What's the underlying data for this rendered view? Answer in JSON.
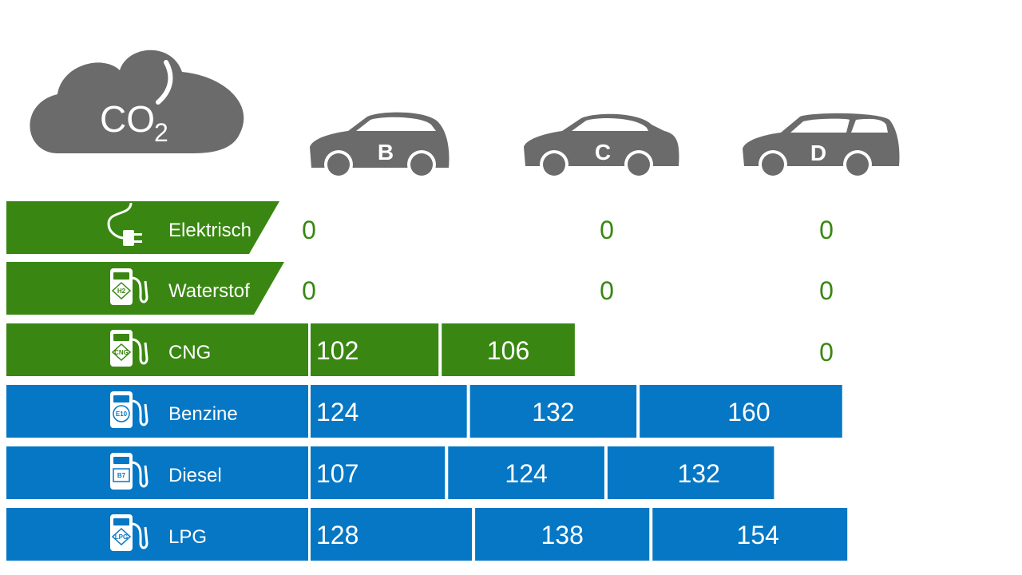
{
  "cloud": {
    "label": "CO",
    "subscript": "2"
  },
  "colors": {
    "green": "#398712",
    "blue": "#0577C4",
    "icon_gray": "#6b6b6b",
    "white": "#ffffff"
  },
  "cars": [
    {
      "letter": "B",
      "shape": "hatchback"
    },
    {
      "letter": "C",
      "shape": "sedan"
    },
    {
      "letter": "D",
      "shape": "wagon"
    }
  ],
  "chart_data": {
    "type": "bar",
    "orientation": "horizontal-stacked",
    "categories": [
      "Elektrisch",
      "Waterstof",
      "CNG",
      "Benzine",
      "Diesel",
      "LPG"
    ],
    "category_icons": [
      "plug-icon",
      "fuel-pump-h2-icon",
      "fuel-pump-cng-icon",
      "fuel-pump-e10-icon",
      "fuel-pump-b7-icon",
      "fuel-pump-lpg-icon"
    ],
    "category_badges": [
      "",
      "H2",
      "CNG",
      "E10",
      "B7",
      "LPG"
    ],
    "category_colors": [
      "#398712",
      "#398712",
      "#398712",
      "#0577C4",
      "#0577C4",
      "#0577C4"
    ],
    "series": [
      {
        "name": "B",
        "values": [
          0,
          0,
          102,
          124,
          107,
          128
        ]
      },
      {
        "name": "C",
        "values": [
          0,
          0,
          106,
          132,
          124,
          138
        ]
      },
      {
        "name": "D",
        "values": [
          0,
          0,
          0,
          160,
          132,
          154
        ]
      }
    ]
  }
}
